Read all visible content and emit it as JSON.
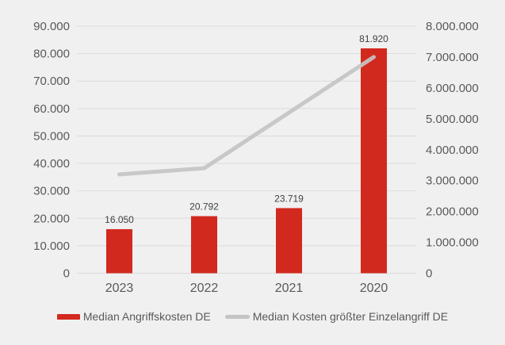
{
  "chart_data": {
    "type": "combo",
    "title": "",
    "categories": [
      "2023",
      "2022",
      "2021",
      "2020"
    ],
    "series": [
      {
        "name": "Median Angriffskosten DE",
        "type": "bar",
        "axis": "left",
        "color": "#d2291e",
        "values": [
          16050,
          20792,
          23719,
          81920
        ],
        "data_labels": [
          "16.050",
          "20.792",
          "23.719",
          "81.920"
        ]
      },
      {
        "name": "Median Kosten größter Einzelangriff DE",
        "type": "line",
        "axis": "right",
        "color": "#c4c4c4",
        "values": [
          3200000,
          3400000,
          5200000,
          7000000
        ]
      }
    ],
    "left_axis": {
      "min": 0,
      "max": 90000,
      "step": 10000,
      "tick_labels": [
        "0",
        "10.000",
        "20.000",
        "30.000",
        "40.000",
        "50.000",
        "60.000",
        "70.000",
        "80.000",
        "90.000"
      ]
    },
    "right_axis": {
      "min": 0,
      "max": 8000000,
      "step": 1000000,
      "tick_labels": [
        "0",
        "1.000.000",
        "2.000.000",
        "3.000.000",
        "4.000.000",
        "5.000.000",
        "6.000.000",
        "7.000.000",
        "8.000.000"
      ]
    },
    "grid": true,
    "legend_position": "bottom"
  },
  "legend": {
    "items": [
      {
        "label": "Median Angriffskosten DE",
        "color": "#d2291e",
        "marker": "bar"
      },
      {
        "label": "Median Kosten größter Einzelangriff DE",
        "color": "#c4c4c4",
        "marker": "line"
      }
    ]
  },
  "colors": {
    "background": "#f0f0f0",
    "gridline": "#dbdbdb",
    "tick_text": "#595959",
    "data_label_text": "#404040"
  }
}
